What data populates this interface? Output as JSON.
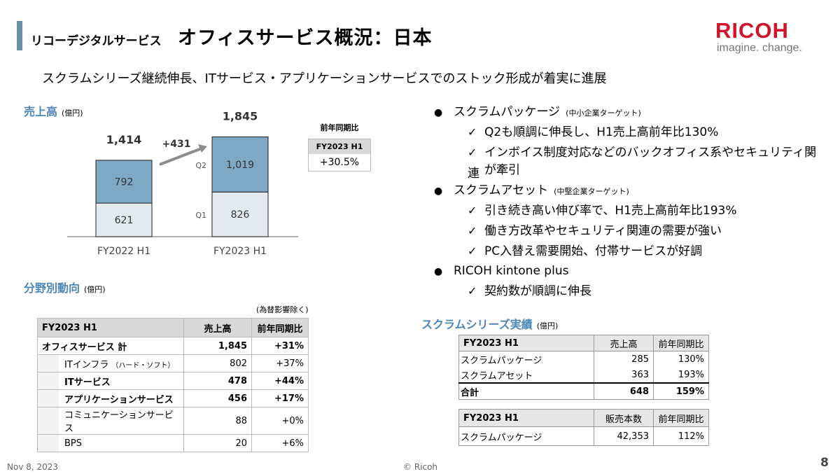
{
  "header": {
    "subtitle": "リコーデジタルサービス",
    "title": "オフィスサービス概況：日本",
    "logo": "RICOH",
    "tagline": "imagine. change."
  },
  "headline": "スクラムシリーズ継続伸長、ITサービス・アプリケーションサービスでのストック形成が着実に進展",
  "sales_section": {
    "title": "売上高",
    "unit": "(億円)"
  },
  "chart_data": {
    "type": "bar",
    "categories": [
      "FY2022 H1",
      "FY2023 H1"
    ],
    "series": [
      {
        "name": "Q1",
        "values": [
          621,
          826
        ]
      },
      {
        "name": "Q2",
        "values": [
          792,
          1019
        ]
      }
    ],
    "totals": [
      "1,414",
      "1,845"
    ],
    "value_labels": {
      "Q1": [
        "621",
        "826"
      ],
      "Q2": [
        "792",
        "1,019"
      ]
    },
    "delta_label": "+431",
    "colors": {
      "Q1": "#e3ebf1",
      "Q2": "#7ea8c4"
    },
    "stacked": true
  },
  "yoy_box": {
    "header": "前年同期比",
    "period": "FY2023 H1",
    "value": "+30.5%"
  },
  "segment_section": {
    "title": "分野別動向",
    "unit": "(億円)",
    "note": "(為替影響除く)"
  },
  "segment_table": {
    "headers": [
      "FY2023 H1",
      "売上高",
      "前年同期比"
    ],
    "rows": [
      {
        "label": "オフィスサービス 計",
        "sales": "1,845",
        "yoy": "+31%",
        "bold": true,
        "indent": false
      },
      {
        "label": "ITインフラ",
        "sublabel": "（ハード・ソフト）",
        "sales": "802",
        "yoy": "+37%",
        "bold": false,
        "indent": true
      },
      {
        "label": "ITサービス",
        "sales": "478",
        "yoy": "+44%",
        "bold": true,
        "indent": true
      },
      {
        "label": "アプリケーションサービス",
        "sales": "456",
        "yoy": "+17%",
        "bold": true,
        "indent": true
      },
      {
        "label": "コミュニケーションサービス",
        "sales": "88",
        "yoy": "+0%",
        "bold": false,
        "indent": true
      },
      {
        "label": "BPS",
        "sales": "20",
        "yoy": "+6%",
        "bold": false,
        "indent": true
      }
    ]
  },
  "bullets": [
    {
      "text": "スクラムパッケージ",
      "note": "(中小企業ターゲット)",
      "checks": [
        "Q2も順調に伸長し、H1売上高前年比130%",
        "インボイス制度対応などのバックオフィス系やセキュリティ関連",
        "が牽引"
      ]
    },
    {
      "text": "スクラムアセット",
      "note": "(中堅企業ターゲット)",
      "checks": [
        "引き続き高い伸び率で、H1売上高前年比193%",
        "働き方改革やセキュリティ関連の需要が強い",
        "PC入替え需要開始、付帯サービスが好調"
      ]
    },
    {
      "text": "RICOH kintone plus",
      "note": "",
      "checks": [
        "契約数が順調に伸長"
      ]
    }
  ],
  "scrum_section": {
    "title": "スクラムシリーズ実績",
    "unit": "(億円)"
  },
  "scrum_table1": {
    "headers": [
      "FY2023  H1",
      "売上高",
      "前年同期比"
    ],
    "rows": [
      {
        "label": "スクラムパッケージ",
        "sales": "285",
        "yoy": "130%",
        "bold": false
      },
      {
        "label": "スクラムアセット",
        "sales": "363",
        "yoy": "193%",
        "bold": false
      },
      {
        "label": "合計",
        "sales": "648",
        "yoy": "159%",
        "bold": true
      }
    ]
  },
  "scrum_table2": {
    "headers": [
      "FY2023  H1",
      "販売本数",
      "前年同期比"
    ],
    "rows": [
      {
        "label": "スクラムパッケージ",
        "units": "42,353",
        "yoy": "112%"
      }
    ]
  },
  "footer": {
    "date": "Nov 8, 2023",
    "copyright": "© Ricoh",
    "page": "8"
  }
}
